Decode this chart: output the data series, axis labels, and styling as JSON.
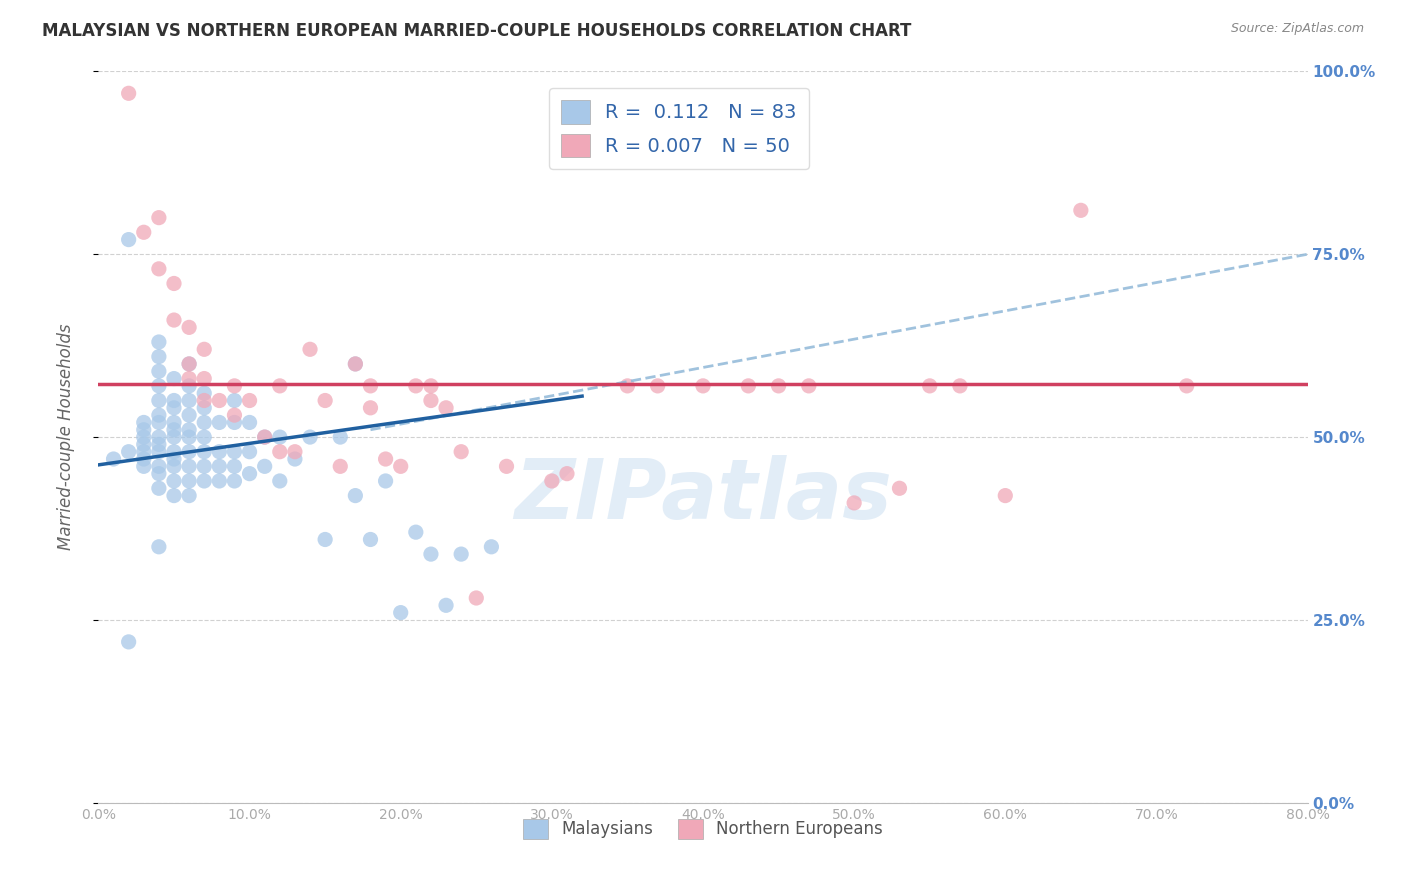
{
  "title": "MALAYSIAN VS NORTHERN EUROPEAN MARRIED-COUPLE HOUSEHOLDS CORRELATION CHART",
  "source": "Source: ZipAtlas.com",
  "xmin": 0.0,
  "xmax": 0.8,
  "ymin": 0.0,
  "ymax": 1.0,
  "R_blue": 0.112,
  "N_blue": 83,
  "R_pink": 0.007,
  "N_pink": 50,
  "blue_color": "#a8c8e8",
  "pink_color": "#f0a8b8",
  "blue_line_color": "#2060a0",
  "pink_line_color": "#d04060",
  "dashed_line_color": "#90b8d8",
  "watermark": "ZIPatlas",
  "ylabel": "Married-couple Households",
  "blue_scatter_x": [
    0.01,
    0.02,
    0.02,
    0.02,
    0.03,
    0.03,
    0.03,
    0.03,
    0.03,
    0.03,
    0.03,
    0.04,
    0.04,
    0.04,
    0.04,
    0.04,
    0.04,
    0.04,
    0.04,
    0.04,
    0.04,
    0.04,
    0.04,
    0.04,
    0.04,
    0.05,
    0.05,
    0.05,
    0.05,
    0.05,
    0.05,
    0.05,
    0.05,
    0.05,
    0.05,
    0.05,
    0.06,
    0.06,
    0.06,
    0.06,
    0.06,
    0.06,
    0.06,
    0.06,
    0.06,
    0.06,
    0.07,
    0.07,
    0.07,
    0.07,
    0.07,
    0.07,
    0.07,
    0.08,
    0.08,
    0.08,
    0.08,
    0.09,
    0.09,
    0.09,
    0.09,
    0.09,
    0.1,
    0.1,
    0.1,
    0.11,
    0.11,
    0.12,
    0.12,
    0.13,
    0.14,
    0.15,
    0.16,
    0.17,
    0.17,
    0.18,
    0.19,
    0.2,
    0.21,
    0.22,
    0.23,
    0.24,
    0.26
  ],
  "blue_scatter_y": [
    0.47,
    0.22,
    0.48,
    0.77,
    0.46,
    0.47,
    0.48,
    0.49,
    0.5,
    0.51,
    0.52,
    0.35,
    0.43,
    0.45,
    0.46,
    0.48,
    0.49,
    0.5,
    0.52,
    0.53,
    0.55,
    0.57,
    0.59,
    0.61,
    0.63,
    0.42,
    0.44,
    0.46,
    0.47,
    0.48,
    0.5,
    0.51,
    0.52,
    0.54,
    0.55,
    0.58,
    0.42,
    0.44,
    0.46,
    0.48,
    0.5,
    0.51,
    0.53,
    0.55,
    0.57,
    0.6,
    0.44,
    0.46,
    0.48,
    0.5,
    0.52,
    0.54,
    0.56,
    0.44,
    0.46,
    0.48,
    0.52,
    0.44,
    0.46,
    0.48,
    0.52,
    0.55,
    0.45,
    0.48,
    0.52,
    0.46,
    0.5,
    0.44,
    0.5,
    0.47,
    0.5,
    0.36,
    0.5,
    0.42,
    0.6,
    0.36,
    0.44,
    0.26,
    0.37,
    0.34,
    0.27,
    0.34,
    0.35
  ],
  "pink_scatter_x": [
    0.02,
    0.03,
    0.04,
    0.04,
    0.05,
    0.05,
    0.06,
    0.06,
    0.06,
    0.07,
    0.07,
    0.07,
    0.08,
    0.09,
    0.09,
    0.1,
    0.11,
    0.12,
    0.12,
    0.13,
    0.14,
    0.15,
    0.16,
    0.17,
    0.18,
    0.18,
    0.19,
    0.2,
    0.21,
    0.22,
    0.22,
    0.23,
    0.24,
    0.25,
    0.27,
    0.3,
    0.31,
    0.35,
    0.37,
    0.4,
    0.43,
    0.45,
    0.47,
    0.5,
    0.53,
    0.55,
    0.57,
    0.6,
    0.65,
    0.72
  ],
  "pink_scatter_y": [
    0.97,
    0.78,
    0.73,
    0.8,
    0.66,
    0.71,
    0.58,
    0.6,
    0.65,
    0.55,
    0.58,
    0.62,
    0.55,
    0.53,
    0.57,
    0.55,
    0.5,
    0.48,
    0.57,
    0.48,
    0.62,
    0.55,
    0.46,
    0.6,
    0.54,
    0.57,
    0.47,
    0.46,
    0.57,
    0.57,
    0.55,
    0.54,
    0.48,
    0.28,
    0.46,
    0.44,
    0.45,
    0.57,
    0.57,
    0.57,
    0.57,
    0.57,
    0.57,
    0.41,
    0.43,
    0.57,
    0.57,
    0.42,
    0.81,
    0.57
  ],
  "blue_line_x0": 0.0,
  "blue_line_y0": 0.462,
  "blue_line_x1": 0.32,
  "blue_line_y1": 0.556,
  "dashed_line_x0": 0.18,
  "dashed_line_y0": 0.51,
  "dashed_line_x1": 0.8,
  "dashed_line_y1": 0.75,
  "pink_line_y": 0.572
}
